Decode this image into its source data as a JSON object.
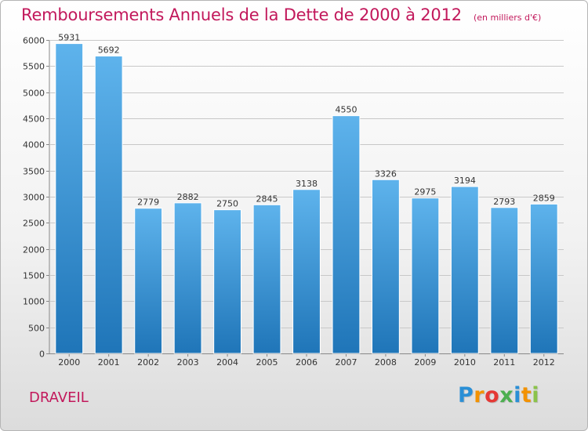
{
  "title": "Remboursements Annuels de la Dette de 2000 à 2012",
  "unit": "(en milliers d'€)",
  "city": "DRAVEIL",
  "brand": {
    "letters": [
      "P",
      "r",
      "o",
      "x",
      "i",
      "t",
      "i"
    ],
    "colors": [
      "#2a8fd6",
      "#f39200",
      "#e53935",
      "#4caf50",
      "#2a8fd6",
      "#f39200",
      "#8bc34a"
    ]
  },
  "colors": {
    "bar_top": "#5eb3ec",
    "bar_bottom": "#1f75b8",
    "title": "#c2185b",
    "axis_text": "#333333",
    "grid": "#c8c8c8"
  },
  "chart_data": {
    "type": "bar",
    "title": "Remboursements Annuels de la Dette de 2000 à 2012",
    "ylabel": "",
    "xlabel": "",
    "categories": [
      "2000",
      "2001",
      "2002",
      "2003",
      "2004",
      "2005",
      "2006",
      "2007",
      "2008",
      "2009",
      "2010",
      "2011",
      "2012"
    ],
    "values": [
      5931,
      5692,
      2779,
      2882,
      2750,
      2845,
      3138,
      4550,
      3326,
      2975,
      3194,
      2793,
      2859
    ],
    "ylim": [
      0,
      6000
    ],
    "yticks": [
      0,
      500,
      1000,
      1500,
      2000,
      2500,
      3000,
      3500,
      4000,
      4500,
      5000,
      5500,
      6000
    ],
    "grid": true,
    "legend": "none"
  }
}
